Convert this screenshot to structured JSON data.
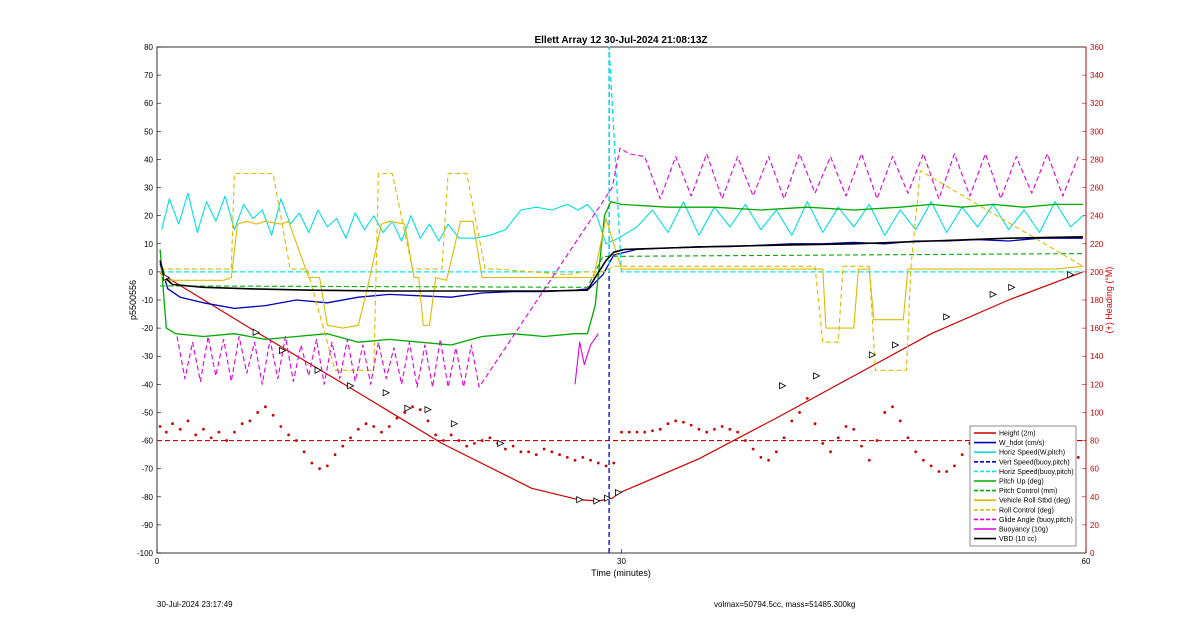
{
  "chart_data": {
    "type": "line",
    "title": "Ellett Array 12 30-Jul-2024 21:08:13Z",
    "xlabel": "Time (minutes)",
    "ylabel": "p5500556",
    "y2label": "(+) Heading (°M)",
    "xlim": [
      0,
      60
    ],
    "ylim": [
      -100,
      80
    ],
    "y2lim": [
      0,
      360
    ],
    "xticks": [
      0,
      30,
      60
    ],
    "yticks": [
      -100,
      -90,
      -80,
      -70,
      -60,
      -50,
      -40,
      -30,
      -20,
      -10,
      0,
      10,
      20,
      30,
      40,
      50,
      60,
      70,
      80
    ],
    "y2ticks": [
      0,
      20,
      40,
      60,
      80,
      100,
      120,
      140,
      160,
      180,
      200,
      220,
      240,
      260,
      280,
      300,
      320,
      340,
      360
    ],
    "grid": false,
    "legend_position": "bottom-right",
    "vertical_lines": [
      {
        "series": "Vert Speed(buoy,pitch)",
        "x": 29.2,
        "color": "#0000cc"
      },
      {
        "series": "Horiz Speed(buoy,pitch)",
        "x": 29.2,
        "color": "#00e5ee"
      }
    ],
    "reference_lines": [
      {
        "axis": "y",
        "value": -60,
        "color": "#cc0000",
        "dashed": true
      }
    ],
    "series": [
      {
        "name": "Height (2m)",
        "color": "#cc0000",
        "style": "solid",
        "width": 1.2,
        "x": [
          0.2,
          6.3,
          12.4,
          18.4,
          24.2,
          27.2,
          28.5,
          29.4,
          29.9,
          35,
          40,
          45,
          50,
          55,
          59.8
        ],
        "y": [
          -0.5,
          -21,
          -41,
          -61,
          -77,
          -81,
          -81.5,
          -80.5,
          -78.5,
          -66.5,
          -52,
          -37,
          -22,
          -10,
          0
        ]
      },
      {
        "name": "W_hdot (cm/s)",
        "color": "#0000bb",
        "style": "solid",
        "width": 1.3,
        "x": [
          0.2,
          0.7,
          1.5,
          3,
          5,
          7,
          9,
          11,
          13,
          15,
          17,
          19,
          21,
          23,
          25,
          27,
          27.9,
          28.8,
          29.5,
          31,
          33,
          35,
          37,
          39,
          41,
          43,
          45,
          47,
          49,
          51,
          53,
          55,
          57,
          59,
          59.8
        ],
        "y": [
          3,
          -6,
          -9,
          -11,
          -13,
          -12,
          -10,
          -11,
          -9,
          -8,
          -8.5,
          -9,
          -7.5,
          -7,
          -7,
          -6.5,
          -6,
          -1,
          6,
          8,
          8.5,
          9,
          9,
          9.5,
          10,
          10,
          10.5,
          10,
          11,
          11,
          11.5,
          11,
          12,
          12,
          12
        ]
      },
      {
        "name": "Horiz Speed(W,pitch)",
        "color": "#00e0e0",
        "style": "solid",
        "width": 1.1,
        "x": [
          0.3,
          0.8,
          1.4,
          2,
          2.6,
          3.2,
          3.8,
          4.4,
          5,
          5.6,
          6.2,
          6.8,
          7.4,
          8,
          8.6,
          9.2,
          9.8,
          10.4,
          11,
          11.6,
          12.2,
          12.8,
          13.4,
          14,
          14.6,
          15.2,
          15.8,
          16.4,
          17,
          17.6,
          18.2,
          18.8,
          19.5,
          20.5,
          21.5,
          22.5,
          23.5,
          24.5,
          25.5,
          26.5,
          27.2,
          27.8,
          28.4,
          29,
          29.8,
          31,
          32,
          33,
          34,
          35,
          36,
          37,
          38,
          39,
          40,
          41,
          42,
          43,
          44,
          45,
          46,
          47,
          48,
          49,
          50,
          51,
          52,
          53,
          54,
          55,
          56,
          57,
          58,
          59,
          59.8
        ],
        "y": [
          15,
          26,
          17,
          28,
          14,
          25,
          18,
          27,
          15,
          24,
          19,
          22,
          13,
          26,
          17,
          21,
          14,
          22,
          16,
          19,
          12,
          21,
          15,
          20,
          14,
          18,
          11,
          20,
          12,
          17,
          11,
          17,
          12,
          12,
          13,
          15,
          22,
          23,
          22,
          24,
          22,
          24,
          20,
          10,
          12,
          16,
          22,
          14,
          25,
          13,
          23,
          16,
          24,
          15,
          22,
          13,
          25,
          14,
          23,
          16,
          24,
          13,
          22,
          15,
          25,
          14,
          23,
          16,
          24,
          15,
          22,
          14,
          25,
          16,
          20
        ]
      },
      {
        "name": "Vert Speed(buoy,pitch)",
        "color": "#0000cc",
        "style": "dashed",
        "width": 1.3,
        "x": [
          29.2,
          29.2
        ],
        "y": [
          -100,
          80
        ]
      },
      {
        "name": "Horiz Speed(buoy,pitch)",
        "color": "#00e5ee",
        "style": "dashed",
        "width": 1.3,
        "x": [
          0.2,
          29.2,
          29.2,
          30,
          59.8
        ],
        "y": [
          0,
          0,
          80,
          0,
          0
        ]
      },
      {
        "name": "Pitch Up (deg)",
        "color": "#00aa00",
        "style": "solid",
        "width": 1.3,
        "x": [
          0.2,
          0.6,
          1.2,
          3,
          5,
          7,
          9,
          11,
          13,
          15,
          17,
          19,
          21,
          23,
          25,
          27,
          27.8,
          28.3,
          28.9,
          29.3,
          30,
          33,
          36,
          39,
          42,
          45,
          48,
          50,
          52,
          54,
          56,
          58,
          59.8
        ],
        "y": [
          8,
          -20,
          -22,
          -23,
          -22,
          -24,
          -23,
          -22,
          -25,
          -24,
          -25,
          -26,
          -23,
          -22,
          -23,
          -22,
          -22,
          -12,
          20,
          25,
          24,
          23,
          23,
          22,
          23,
          22,
          23,
          24,
          23,
          24,
          23,
          24,
          24
        ]
      },
      {
        "name": "Pitch Control (mm)",
        "color": "#00aa00",
        "style": "dashed",
        "width": 1.1,
        "x": [
          0.2,
          27.8,
          28.8,
          59.8
        ],
        "y": [
          -5,
          -5.5,
          5.5,
          6.5
        ]
      },
      {
        "name": "Vehicle Roll Stbd (deg)",
        "color": "#ddbb00",
        "style": "solid",
        "width": 1.1,
        "x": [
          0.2,
          0.5,
          4.3,
          4.8,
          5.2,
          5.8,
          6.4,
          7,
          8,
          8.5,
          9.8,
          10.2,
          10.5,
          11,
          12,
          13,
          13.5,
          14.5,
          15,
          16,
          16.6,
          16.9,
          17.2,
          17.6,
          18,
          18.7,
          19.6,
          20.4,
          21,
          22,
          24,
          26,
          27.5,
          28.2,
          29,
          30,
          33,
          36,
          40,
          42,
          43,
          43.2,
          45,
          45.3,
          46,
          46.3,
          48.2,
          48.5,
          50,
          52,
          55,
          58,
          59.8
        ],
        "y": [
          0,
          -3,
          -3,
          -2,
          17,
          18,
          17,
          18,
          17,
          18,
          -2,
          -2,
          -2,
          -19,
          -20,
          -19,
          -8,
          17,
          18,
          17,
          -2,
          -2,
          -19,
          -19,
          -2,
          -3,
          18,
          18,
          -2,
          -2,
          -2,
          -2,
          -2,
          -2,
          19,
          1,
          1,
          1,
          1,
          1,
          1,
          -20,
          -20,
          1,
          1,
          -17,
          -17,
          1,
          1,
          1,
          1,
          1,
          2
        ]
      },
      {
        "name": "Roll Control (deg)",
        "color": "#ddbb00",
        "style": "dashed",
        "width": 1.1,
        "x": [
          0.2,
          4.8,
          5,
          7.5,
          8.6,
          9.7,
          11.5,
          12,
          12.2,
          14,
          14.3,
          15.2,
          16.5,
          18.4,
          18.8,
          20,
          21.2,
          22,
          26.5,
          27.5,
          28.8,
          29.5,
          42.5,
          43,
          44,
          44.3,
          46,
          46.4,
          48.4,
          48.7,
          49.3,
          59.8
        ],
        "y": [
          1,
          1,
          35,
          35,
          1,
          1,
          -35,
          -35,
          -35,
          -35,
          35,
          35,
          1,
          1,
          35,
          35,
          1,
          1,
          -1,
          0,
          0,
          2,
          2,
          -25,
          -25,
          2,
          2,
          -35,
          -35,
          2,
          36,
          2
        ]
      },
      {
        "name": "Glide Angle (buoy,pitch)",
        "color": "#dd00dd",
        "style": "dashed",
        "width": 1.1,
        "x": [
          1.3,
          1.8,
          2.3,
          2.8,
          3.3,
          3.8,
          4.3,
          4.8,
          5.3,
          5.8,
          6.3,
          6.8,
          7.3,
          7.8,
          8.3,
          8.8,
          9.3,
          9.8,
          10.3,
          10.8,
          11.3,
          11.8,
          12.3,
          12.8,
          13.3,
          13.8,
          14.3,
          14.8,
          15.3,
          15.8,
          16.3,
          16.8,
          17.3,
          17.8,
          18.3,
          18.8,
          19.3,
          19.8,
          20.3,
          20.8,
          29.4,
          29.9,
          30.5,
          31.5,
          32.5,
          33.5,
          34.5,
          35.5,
          36.5,
          37.5,
          38.5,
          39.5,
          40.5,
          41.5,
          42.5,
          43.5,
          44.5,
          45.5,
          46.5,
          47.5,
          48.5,
          49.5,
          50.5,
          51.5,
          52.5,
          53.5,
          54.5,
          55.5,
          56.5,
          57.5,
          58.5,
          59.5
        ],
        "y": [
          -23,
          -38,
          -25,
          -39,
          -23,
          -37,
          -24,
          -39,
          -23,
          -36,
          -25,
          -40,
          -24,
          -38,
          -23,
          -39,
          -26,
          -37,
          -24,
          -40,
          -25,
          -38,
          -24,
          -39,
          -26,
          -40,
          -25,
          -38,
          -27,
          -40,
          -25,
          -41,
          -26,
          -41,
          -24,
          -41,
          -27,
          -41,
          -26,
          -41,
          30,
          44,
          42,
          41,
          26,
          41,
          27,
          42,
          26,
          41,
          27,
          41,
          26,
          42,
          28,
          41,
          27,
          42,
          26,
          41,
          28,
          42,
          26,
          42,
          27,
          42,
          26,
          41,
          28,
          42,
          27,
          41
        ]
      },
      {
        "name": "Buoyancy (10g)",
        "color": "#dd00dd",
        "style": "solid",
        "width": 1.1,
        "x": [
          27,
          27.3,
          27.6,
          28,
          28.5
        ],
        "y": [
          -40,
          -25,
          -33,
          -26,
          -22
        ]
      },
      {
        "name": "VBD (10 cc)",
        "color": "#000000",
        "style": "solid",
        "width": 1.6,
        "x": [
          0.2,
          0.5,
          1,
          3,
          6,
          10,
          15,
          20,
          25,
          27.8,
          28.3,
          29,
          29.5,
          30.2,
          33,
          36,
          40,
          45,
          50,
          55,
          59.8
        ],
        "y": [
          4,
          -2,
          -4.5,
          -5.5,
          -6,
          -6.5,
          -6.8,
          -6.8,
          -6.8,
          -6.5,
          -2,
          4,
          7,
          8,
          8.5,
          9,
          9.5,
          10,
          11,
          12,
          12.5
        ]
      },
      {
        "name": "Heading",
        "axis": "y2",
        "color": "#cc0000",
        "style": "dots",
        "width": 1,
        "x": [
          0.2,
          0.6,
          1,
          1.5,
          2,
          2.5,
          3,
          3.5,
          4,
          4.5,
          5,
          5.5,
          6,
          6.5,
          7,
          7.5,
          8,
          8.5,
          9,
          9.5,
          10,
          10.5,
          11,
          11.5,
          12,
          12.5,
          13,
          13.5,
          14,
          14.5,
          15,
          15.5,
          16,
          16.5,
          17,
          17.5,
          18,
          18.5,
          19,
          19.5,
          20,
          20.5,
          21,
          21.5,
          22,
          22.5,
          23,
          23.5,
          24,
          24.5,
          25,
          25.5,
          26,
          26.5,
          27,
          27.5,
          28,
          28.5,
          29,
          29.5,
          30,
          30.5,
          31,
          31.5,
          32,
          32.5,
          33,
          33.5,
          34,
          34.5,
          35,
          35.5,
          36,
          36.5,
          37,
          37.5,
          38,
          38.5,
          39,
          39.5,
          40,
          40.5,
          41,
          41.5,
          42,
          42.5,
          43,
          43.5,
          44,
          44.5,
          45,
          45.5,
          46,
          46.5,
          47,
          47.5,
          48,
          48.5,
          49,
          49.5,
          50,
          50.5,
          51,
          51.5,
          52,
          52.5,
          53,
          53.5,
          54,
          54.5,
          55,
          55.5,
          56,
          56.5,
          57,
          57.5,
          58,
          58.5,
          59,
          59.5
        ],
        "y": [
          90,
          86,
          92,
          88,
          94,
          84,
          88,
          82,
          86,
          80,
          86,
          92,
          94,
          100,
          104,
          98,
          90,
          84,
          80,
          72,
          64,
          60,
          62,
          70,
          76,
          82,
          88,
          92,
          90,
          86,
          90,
          96,
          100,
          104,
          102,
          94,
          84,
          80,
          84,
          80,
          76,
          78,
          80,
          82,
          78,
          74,
          76,
          72,
          72,
          70,
          74,
          72,
          70,
          68,
          66,
          68,
          66,
          64,
          62,
          64,
          86,
          86,
          86,
          86,
          87,
          88,
          92,
          94,
          93,
          91,
          88,
          86,
          88,
          90,
          88,
          86,
          80,
          74,
          68,
          66,
          72,
          82,
          94,
          100,
          110,
          92,
          78,
          72,
          82,
          90,
          88,
          76,
          66,
          80,
          100,
          104,
          94,
          82,
          72,
          66,
          62,
          58,
          58,
          62,
          70,
          78,
          86,
          80,
          72,
          62,
          56,
          60,
          66,
          70,
          72,
          74,
          76,
          80,
          72,
          68
        ]
      }
    ],
    "markers": {
      "series": "Height (2m)",
      "style": "triangle",
      "x": [
        0.6,
        6.4,
        8.1,
        10.4,
        12.5,
        14.8,
        16.2,
        17.5,
        19.2,
        22.2,
        27.3,
        28.4,
        29.1,
        29.8,
        40.4,
        42.6,
        46.2,
        47.7,
        51,
        54,
        55.2,
        59
      ],
      "y": [
        -2,
        -21.5,
        -28,
        -35,
        -40.5,
        -43,
        -48.5,
        -49,
        -54,
        -61,
        -81,
        -81.5,
        -80.5,
        -78.5,
        -40.5,
        -37,
        -29.5,
        -26,
        -16,
        -8,
        -5.5,
        -1
      ]
    }
  },
  "legend": {
    "entries": [
      {
        "label": "Height (2m)",
        "color": "#cc0000",
        "dashed": false
      },
      {
        "label": "W_hdot (cm/s)",
        "color": "#0000bb",
        "dashed": false
      },
      {
        "label": "Horiz Speed(W,pitch)",
        "color": "#00e0e0",
        "dashed": false
      },
      {
        "label": "Vert Speed(buoy,pitch)",
        "color": "#0000cc",
        "dashed": true
      },
      {
        "label": "Horiz Speed(buoy,pitch)",
        "color": "#00e5ee",
        "dashed": true
      },
      {
        "label": "Pitch Up (deg)",
        "color": "#00aa00",
        "dashed": false
      },
      {
        "label": "Pitch Control (mm)",
        "color": "#00aa00",
        "dashed": true
      },
      {
        "label": "Vehicle Roll Stbd (deg)",
        "color": "#ddbb00",
        "dashed": false
      },
      {
        "label": "Roll Control (deg)",
        "color": "#ddbb00",
        "dashed": true
      },
      {
        "label": "Glide Angle (buoy,pitch)",
        "color": "#dd00dd",
        "dashed": true
      },
      {
        "label": "Buoyancy (10g)",
        "color": "#dd00dd",
        "dashed": false
      },
      {
        "label": "VBD (10 cc)",
        "color": "#000000",
        "dashed": false
      }
    ]
  },
  "footer": {
    "left": "30-Jul-2024 23:17:49",
    "right": "volmax=50794.5cc, mass=51485.300kg"
  },
  "colors": {
    "left_axis": "#000000",
    "right_axis": "#cc0000",
    "vertical_marker": "#00e5ee"
  }
}
